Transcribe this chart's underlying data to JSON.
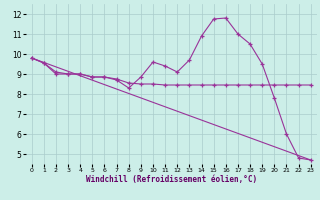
{
  "xlabel": "Windchill (Refroidissement éolien,°C)",
  "bg_color": "#cceee8",
  "line_color": "#993399",
  "grid_color": "#aacccc",
  "xlim": [
    -0.5,
    23.5
  ],
  "ylim": [
    4.5,
    12.5
  ],
  "xticks": [
    0,
    1,
    2,
    3,
    4,
    5,
    6,
    7,
    8,
    9,
    10,
    11,
    12,
    13,
    14,
    15,
    16,
    17,
    18,
    19,
    20,
    21,
    22,
    23
  ],
  "yticks": [
    5,
    6,
    7,
    8,
    9,
    10,
    11,
    12
  ],
  "line1_x": [
    0,
    1,
    2,
    3,
    4,
    5,
    6,
    7,
    8,
    9,
    10,
    11,
    12,
    13,
    14,
    15,
    16,
    17,
    18,
    19,
    20,
    21,
    22,
    23
  ],
  "line1_y": [
    9.8,
    9.55,
    9.0,
    9.0,
    9.0,
    8.85,
    8.85,
    8.7,
    8.3,
    8.85,
    9.6,
    9.4,
    9.1,
    9.7,
    10.9,
    11.75,
    11.8,
    11.0,
    10.5,
    9.5,
    7.8,
    6.0,
    4.8,
    4.7
  ],
  "line2_x": [
    0,
    1,
    2,
    3,
    4,
    5,
    6,
    7,
    8,
    9,
    10,
    11,
    12,
    13,
    14,
    15,
    16,
    17,
    18,
    19,
    20,
    21,
    22,
    23
  ],
  "line2_y": [
    9.8,
    9.55,
    9.1,
    9.0,
    9.0,
    8.85,
    8.85,
    8.75,
    8.55,
    8.5,
    8.5,
    8.45,
    8.45,
    8.45,
    8.45,
    8.45,
    8.45,
    8.45,
    8.45,
    8.45,
    8.45,
    8.45,
    8.45,
    8.45
  ],
  "line3_x": [
    0,
    23
  ],
  "line3_y": [
    9.8,
    4.7
  ]
}
